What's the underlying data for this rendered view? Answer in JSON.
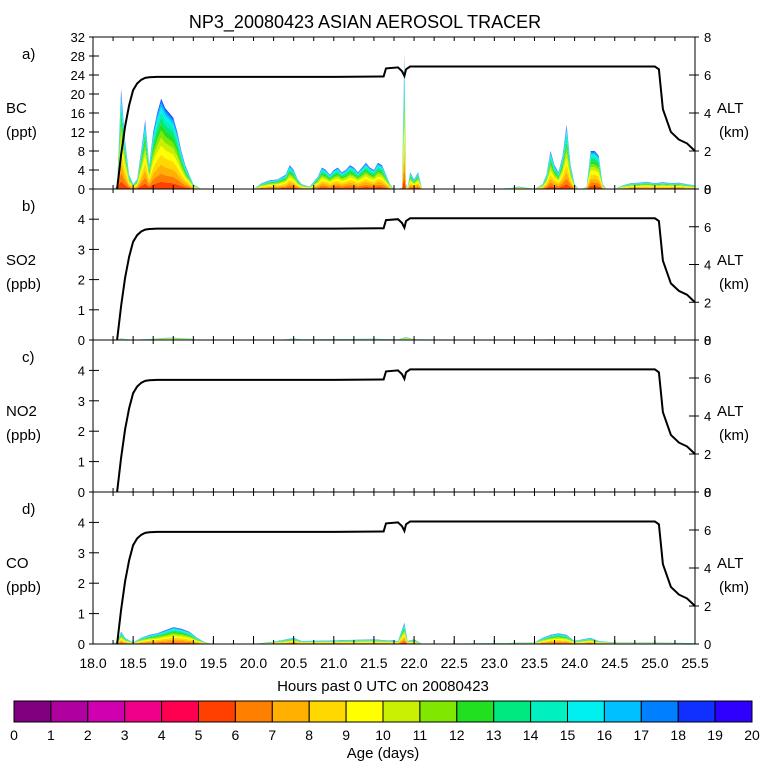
{
  "chart_data": {
    "type": "area",
    "title": "NP3_20080423 ASIAN AEROSOL TRACER",
    "xlabel": "Hours past 0 UTC on 20080423",
    "xlim": [
      18.0,
      25.5
    ],
    "x_ticks": [
      "18.0",
      "18.5",
      "19.0",
      "19.5",
      "20.0",
      "20.5",
      "21.0",
      "21.5",
      "22.0",
      "22.5",
      "23.0",
      "23.5",
      "24.0",
      "24.5",
      "25.0",
      "25.5"
    ],
    "colorbar": {
      "label": "Age (days)",
      "ticks": [
        "0",
        "1",
        "2",
        "3",
        "4",
        "5",
        "6",
        "7",
        "8",
        "9",
        "10",
        "11",
        "12",
        "13",
        "14",
        "15",
        "16",
        "17",
        "18",
        "19",
        "20"
      ],
      "colors": [
        "#800080",
        "#b000a0",
        "#d000b0",
        "#f0008a",
        "#ff0050",
        "#ff4000",
        "#ff8000",
        "#ffb000",
        "#ffd800",
        "#ffff00",
        "#c8f000",
        "#80e800",
        "#20e020",
        "#00e880",
        "#00f0c0",
        "#00f0f0",
        "#00c0ff",
        "#0080ff",
        "#1030ff",
        "#3000ff"
      ]
    },
    "altitude": {
      "ylabel": [
        "ALT",
        "(km)"
      ],
      "ylim": [
        0,
        8
      ],
      "ticks": [
        "0",
        "2",
        "4",
        "6",
        "8"
      ],
      "x": [
        18.3,
        18.35,
        18.4,
        18.45,
        18.5,
        18.55,
        18.6,
        18.65,
        18.7,
        18.8,
        19.0,
        20.0,
        21.0,
        21.62,
        21.65,
        21.8,
        21.85,
        21.88,
        21.9,
        21.95,
        22.0,
        23.0,
        24.0,
        25.0,
        25.05,
        25.1,
        25.2,
        25.3,
        25.4,
        25.45,
        25.5
      ],
      "y": [
        0.0,
        1.8,
        3.3,
        4.4,
        5.2,
        5.55,
        5.75,
        5.85,
        5.88,
        5.9,
        5.9,
        5.9,
        5.9,
        5.92,
        6.35,
        6.4,
        6.2,
        5.95,
        6.3,
        6.45,
        6.45,
        6.45,
        6.45,
        6.45,
        6.3,
        4.2,
        3.0,
        2.6,
        2.4,
        2.2,
        2.0
      ]
    },
    "panels": [
      {
        "letter": "a)",
        "ylabel": [
          "BC",
          "(ppt)"
        ],
        "ylim": [
          0,
          32
        ],
        "ticks": [
          "0",
          "4",
          "8",
          "12",
          "16",
          "20",
          "24",
          "28",
          "32"
        ],
        "x": [
          18.2,
          18.25,
          18.3,
          18.35,
          18.4,
          18.45,
          18.5,
          18.55,
          18.6,
          18.65,
          18.7,
          18.75,
          18.8,
          18.85,
          18.9,
          18.95,
          19.0,
          19.05,
          19.1,
          19.15,
          19.2,
          19.25,
          19.3,
          19.35,
          19.4,
          19.45,
          19.5,
          19.6,
          19.8,
          20.0,
          20.1,
          20.2,
          20.3,
          20.4,
          20.45,
          20.5,
          20.55,
          20.6,
          20.7,
          20.8,
          20.85,
          20.9,
          20.95,
          21.0,
          21.05,
          21.1,
          21.15,
          21.2,
          21.25,
          21.3,
          21.35,
          21.4,
          21.45,
          21.5,
          21.55,
          21.6,
          21.65,
          21.7,
          21.75,
          21.8,
          21.85,
          21.88,
          21.9,
          21.92,
          21.95,
          22.0,
          22.05,
          22.1,
          22.5,
          23.0,
          23.2,
          23.3,
          23.4,
          23.5,
          23.55,
          23.6,
          23.65,
          23.7,
          23.75,
          23.8,
          23.85,
          23.9,
          23.95,
          24.0,
          24.05,
          24.1,
          24.15,
          24.2,
          24.25,
          24.3,
          24.35,
          24.4,
          24.5,
          24.6,
          24.7,
          24.8,
          24.9,
          25.0,
          25.1,
          25.2,
          25.3,
          25.4,
          25.5
        ],
        "y": [
          0,
          0,
          0.5,
          21.0,
          10.0,
          3.0,
          1.0,
          2.0,
          8.0,
          14.5,
          5.0,
          12.0,
          16.0,
          19.0,
          17.0,
          16.0,
          15.0,
          12.0,
          8.0,
          5.0,
          3.0,
          1.0,
          0.5,
          0,
          0,
          0,
          0,
          0,
          0,
          0,
          1.2,
          1.8,
          2.0,
          3.0,
          5.0,
          4.0,
          2.0,
          1.0,
          0.5,
          2.5,
          4.5,
          4.0,
          3.0,
          4.0,
          4.5,
          3.5,
          4.0,
          5.0,
          4.5,
          3.5,
          4.5,
          5.5,
          4.5,
          4.0,
          5.5,
          5.0,
          3.0,
          1.0,
          0,
          0,
          0.3,
          28.5,
          1.0,
          0.3,
          3.5,
          2.0,
          3.5,
          0,
          0,
          0,
          0.2,
          0.5,
          0.3,
          0,
          0.5,
          1.0,
          3.0,
          8.0,
          5.0,
          3.5,
          7.0,
          13.5,
          5.0,
          1.0,
          0,
          0,
          0.5,
          8.0,
          8.0,
          7.0,
          1.0,
          0,
          0,
          0.8,
          1.2,
          1.3,
          1.5,
          1.2,
          1.4,
          1.2,
          1.3,
          1.0,
          0.8
        ]
      },
      {
        "letter": "b)",
        "ylabel": [
          "SO2",
          "(ppb)"
        ],
        "ylim": [
          0,
          5
        ],
        "ticks": [
          "0",
          "1",
          "2",
          "3",
          "4"
        ],
        "x": [
          18.2,
          18.3,
          18.35,
          18.4,
          18.5,
          18.6,
          18.7,
          18.8,
          18.9,
          19.0,
          19.1,
          19.2,
          19.3,
          20.0,
          20.4,
          20.5,
          20.6,
          21.0,
          21.5,
          21.8,
          21.9,
          22.0,
          23.5,
          23.7,
          24.0,
          24.2,
          25.5
        ],
        "y": [
          0,
          0,
          0.06,
          0.03,
          0.01,
          0.02,
          0.03,
          0.05,
          0.07,
          0.08,
          0.06,
          0.05,
          0.01,
          0,
          0.02,
          0.05,
          0.02,
          0.03,
          0.04,
          0.02,
          0.1,
          0.02,
          0.01,
          0.02,
          0.01,
          0.01,
          0
        ]
      },
      {
        "letter": "c)",
        "ylabel": [
          "NO2",
          "(ppb)"
        ],
        "ylim": [
          0,
          5
        ],
        "ticks": [
          "0",
          "1",
          "2",
          "3",
          "4"
        ],
        "x": [
          18.2,
          25.5
        ],
        "y": [
          0,
          0
        ]
      },
      {
        "letter": "d)",
        "ylabel": [
          "CO",
          "(ppb)"
        ],
        "ylim": [
          0,
          5
        ],
        "ticks": [
          "0",
          "1",
          "2",
          "3",
          "4"
        ],
        "x": [
          18.2,
          18.3,
          18.35,
          18.4,
          18.5,
          18.6,
          18.7,
          18.8,
          18.9,
          19.0,
          19.1,
          19.2,
          19.3,
          19.4,
          19.5,
          20.0,
          20.3,
          20.5,
          20.6,
          21.0,
          21.5,
          21.8,
          21.88,
          21.92,
          22.0,
          22.1,
          23.5,
          23.6,
          23.7,
          23.8,
          23.9,
          24.0,
          24.1,
          24.2,
          24.3,
          24.5,
          25.0,
          25.5
        ],
        "y": [
          0,
          0.05,
          0.4,
          0.2,
          0.05,
          0.2,
          0.3,
          0.35,
          0.45,
          0.55,
          0.5,
          0.4,
          0.2,
          0.05,
          0,
          0,
          0.1,
          0.2,
          0.1,
          0.12,
          0.15,
          0.1,
          0.7,
          0.1,
          0.15,
          0,
          0.05,
          0.2,
          0.3,
          0.35,
          0.3,
          0.1,
          0.15,
          0.2,
          0.1,
          0.05,
          0.05,
          0.03
        ]
      }
    ]
  }
}
